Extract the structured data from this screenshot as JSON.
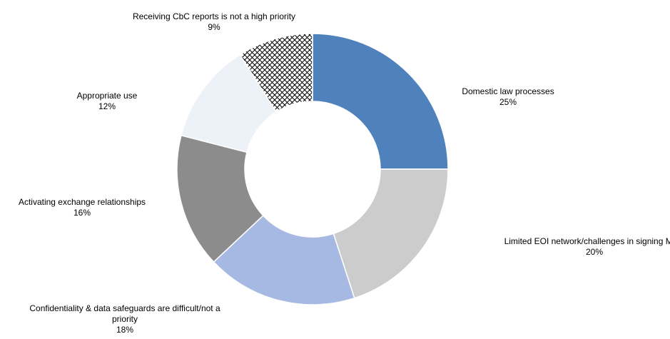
{
  "chart_data": {
    "type": "pie",
    "variant": "donut",
    "title": "",
    "legend": "none",
    "slices": [
      {
        "label": "Domestic law processes",
        "value_label": "25%",
        "value": 25,
        "color": "#4f81bd",
        "pattern": "none"
      },
      {
        "label": "Limited EOI network/challenges in signing MAC",
        "value_label": "20%",
        "value": 20,
        "color": "#cccccc",
        "pattern": "none"
      },
      {
        "label": "Confidentiality & data safeguards are difficult/not a priority",
        "value_label": "18%",
        "value": 18,
        "color": "#a6b9e3",
        "pattern": "none"
      },
      {
        "label": "Activating exchange relationships",
        "value_label": "16%",
        "value": 16,
        "color": "#8c8c8c",
        "pattern": "none"
      },
      {
        "label": "Appropriate use",
        "value_label": "12%",
        "value": 12,
        "color": "#edf1f8",
        "pattern": "none"
      },
      {
        "label": "Receiving CbC reports is not a high priority",
        "value_label": "9%",
        "value": 9,
        "color": "#ffffff",
        "pattern": "crosshatch"
      }
    ]
  }
}
